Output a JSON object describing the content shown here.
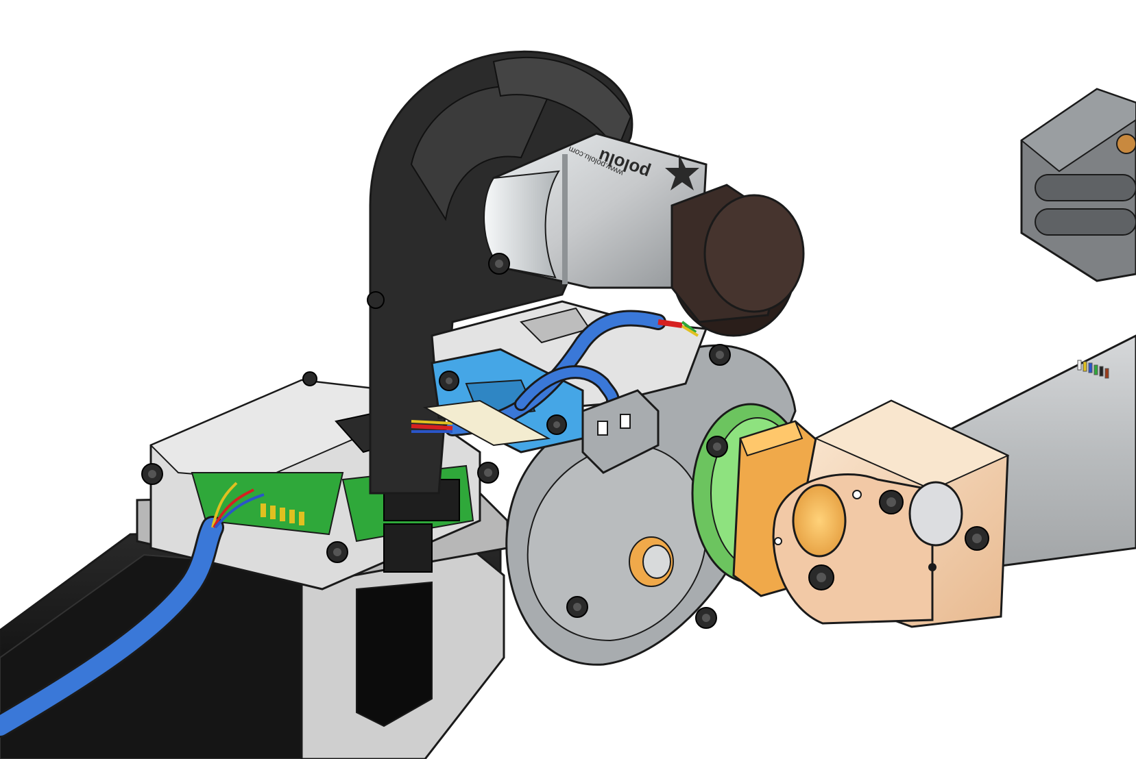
{
  "diagram": {
    "motor_label": {
      "brand": "pololu",
      "url": "www.pololu.com"
    },
    "colors": {
      "background": "#ffffff",
      "outline": "#1a1a1a",
      "bracket_black": "#2b2b2b",
      "motor_silver": "#c7c9cb",
      "motor_shadow": "#9ea2a5",
      "encoder_cap": "#3b2c27",
      "cable_blue": "#3a78d8",
      "clamp_blue": "#45a6e6",
      "gear_grey": "#a8acaf",
      "pcb_green": "#2fa83a",
      "ring_green": "#8ee27f",
      "bearing_orange": "#f0a94a",
      "block_cream": "#f6dcc0",
      "shaft_grey": "#b9bcbe",
      "stepper_black": "#111111",
      "stepper_frame": "#cfcfcf"
    },
    "parts": [
      "stepper-motor",
      "driver-board",
      "belt-bracket",
      "gear-motor",
      "encoder-cap",
      "cable",
      "cable-clamp",
      "gearbox-housing",
      "slew-ring",
      "bearing-sleeve",
      "mounting-block",
      "tube-shaft",
      "side-bracket",
      "screws"
    ]
  }
}
